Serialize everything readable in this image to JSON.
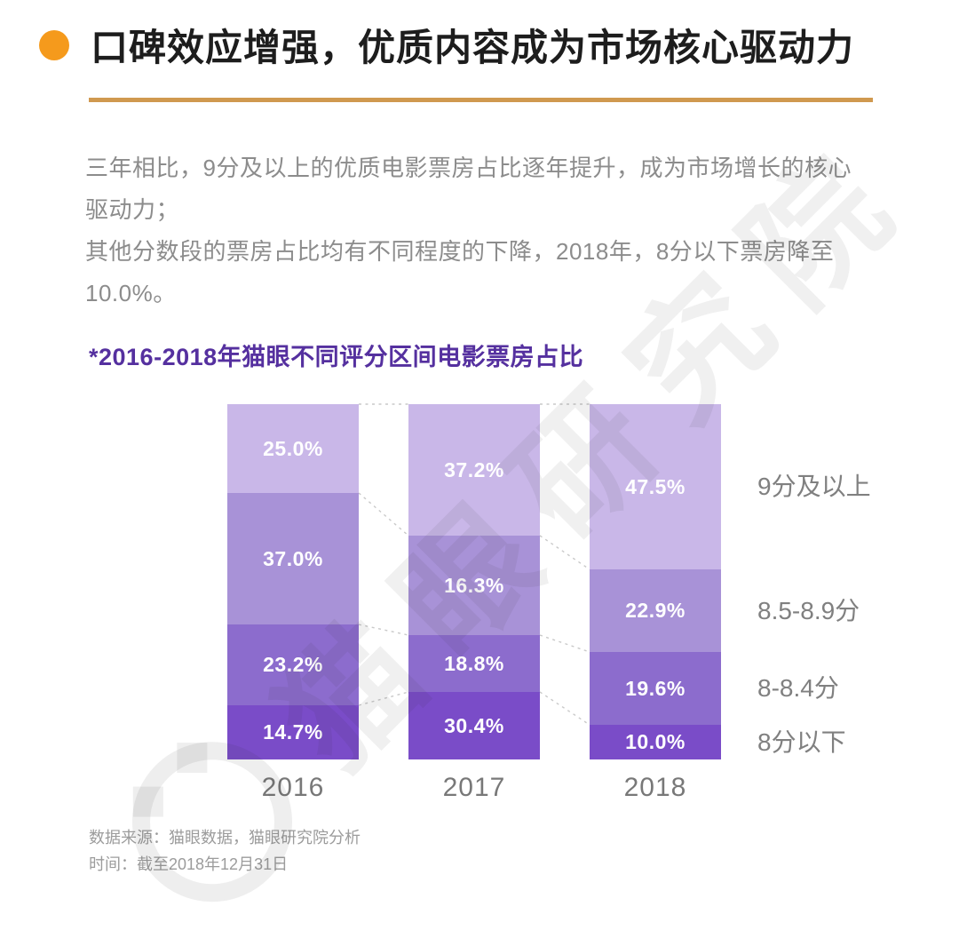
{
  "header": {
    "title": "口碑效应增强，优质内容成为市场核心驱动力",
    "bullet_color": "#f59a1c",
    "underline_color": "#d0994f"
  },
  "description": {
    "paragraph1": "三年相比，9分及以上的优质电影票房占比逐年提升，成为市场增长的核心驱动力；",
    "paragraph2": "其他分数段的票房占比均有不同程度的下降，2018年，8分以下票房降至10.0%。"
  },
  "chart_data": {
    "type": "bar",
    "stacked": true,
    "title": "*2016-2018年猫眼不同评分区间电影票房占比",
    "categories": [
      "2016",
      "2017",
      "2018"
    ],
    "series": [
      {
        "name": "9分及以上",
        "values": [
          25.0,
          37.2,
          47.5
        ],
        "color": "#c9b7e8"
      },
      {
        "name": "8.5-8.9分",
        "values": [
          37.0,
          16.3,
          22.9
        ],
        "color": "#a892d7"
      },
      {
        "name": "8-8.4分",
        "values": [
          23.2,
          18.8,
          19.6
        ],
        "color": "#8c6ccd"
      },
      {
        "name": "8分以下",
        "values": [
          14.7,
          30.4,
          10.0
        ],
        "color": "#7a4cc8"
      }
    ],
    "value_suffix": "%",
    "legend_position": "right",
    "label_color": "#ffffff",
    "connector_color": "#c9c9c9"
  },
  "footer": {
    "source": "数据来源：猫眼数据，猫眼研究院分析",
    "date": "时间：截至2018年12月31日"
  },
  "watermark": {
    "text": "猫眼研究院"
  }
}
